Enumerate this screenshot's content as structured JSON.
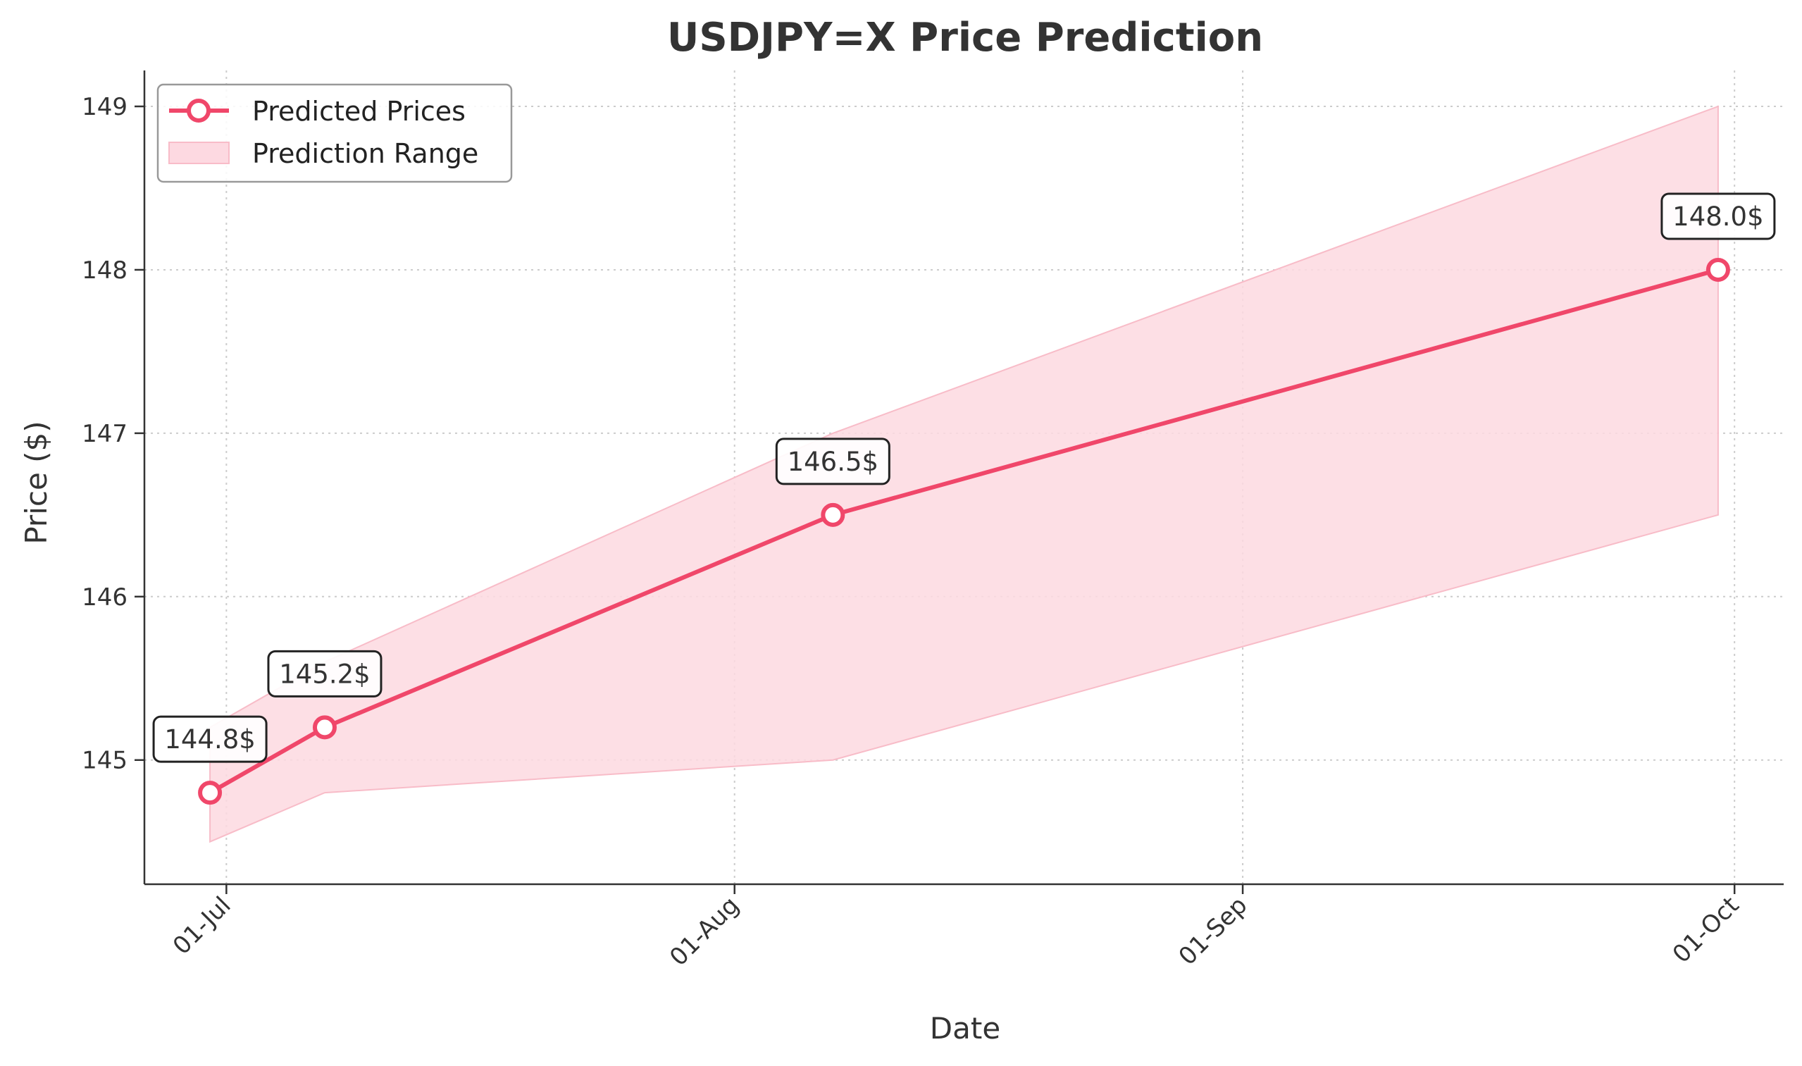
{
  "chart_data": {
    "type": "line",
    "title": "USDJPY=X Price Prediction",
    "xlabel": "Date",
    "ylabel": "Price ($)",
    "x_axis": {
      "type": "date",
      "range": [
        "2024-06-26",
        "2024-10-04"
      ],
      "ticks": [
        {
          "date": "2024-07-01",
          "label": "01-Jul"
        },
        {
          "date": "2024-08-01",
          "label": "01-Aug"
        },
        {
          "date": "2024-09-01",
          "label": "01-Sep"
        },
        {
          "date": "2024-10-01",
          "label": "01-Oct"
        }
      ]
    },
    "y_axis": {
      "range": [
        144.24,
        149.22
      ],
      "ticks": [
        145,
        146,
        147,
        148,
        149
      ]
    },
    "grid": true,
    "legend_position": "top-left",
    "legend": [
      "Predicted Prices",
      "Prediction Range"
    ],
    "colors": {
      "line": "#f0476a",
      "band_fill": "#fdd9e1",
      "band_edge": "#f8bcc8",
      "marker_face": "#ffffff",
      "grid": "#cccccc",
      "axis": "#333333",
      "text": "#333333"
    },
    "series": [
      {
        "name": "Predicted Prices",
        "points": [
          {
            "date": "2024-06-30",
            "value": 144.8,
            "label": "144.8$"
          },
          {
            "date": "2024-07-07",
            "value": 145.2,
            "label": "145.2$"
          },
          {
            "date": "2024-08-07",
            "value": 146.5,
            "label": "146.5$"
          },
          {
            "date": "2024-09-30",
            "value": 148.0,
            "label": "148.0$"
          }
        ]
      },
      {
        "name": "Prediction Range",
        "band": [
          {
            "date": "2024-06-30",
            "low": 144.5,
            "high": 145.2
          },
          {
            "date": "2024-07-07",
            "low": 144.8,
            "high": 145.6
          },
          {
            "date": "2024-08-07",
            "low": 145.0,
            "high": 147.0
          },
          {
            "date": "2024-09-30",
            "low": 146.5,
            "high": 149.0
          }
        ]
      }
    ]
  }
}
